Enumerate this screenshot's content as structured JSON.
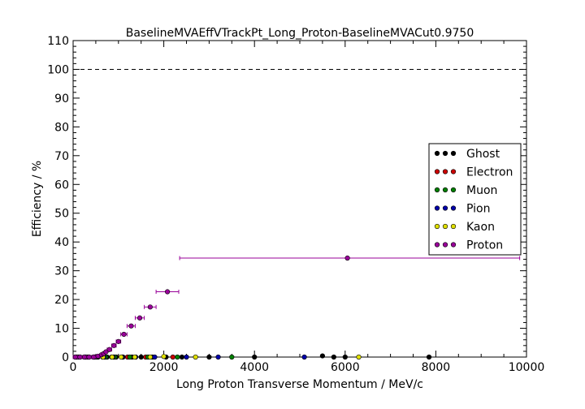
{
  "chart_data": {
    "type": "scatter",
    "title": "BaselineMVAEffVTrackPt_Long_Proton-BaselineMVACut0.9750",
    "xlabel": "Long Proton Transverse Momentum / MeV/c",
    "ylabel": "Efficiency / %",
    "xlim": [
      0,
      10000
    ],
    "ylim": [
      0,
      110
    ],
    "xticks": [
      "0",
      "2000",
      "4000",
      "6000",
      "8000",
      "10000"
    ],
    "yticks": [
      "0",
      "10",
      "20",
      "30",
      "40",
      "50",
      "60",
      "70",
      "80",
      "90",
      "100",
      "110"
    ],
    "reference_line": {
      "y": 100,
      "style": "dashed"
    },
    "grid": false,
    "legend": {
      "placement": "right"
    },
    "series": [
      {
        "name": "Ghost",
        "color": "#000000",
        "points": [
          [
            50,
            0
          ],
          [
            150,
            0
          ],
          [
            250,
            0
          ],
          [
            350,
            0
          ],
          [
            450,
            0
          ],
          [
            550,
            0
          ],
          [
            650,
            0
          ],
          [
            750,
            0
          ],
          [
            850,
            0
          ],
          [
            950,
            0
          ],
          [
            1100,
            0
          ],
          [
            1300,
            0
          ],
          [
            1500,
            0
          ],
          [
            1750,
            0
          ],
          [
            2050,
            0
          ],
          [
            2400,
            0
          ],
          [
            3000,
            0
          ],
          [
            4000,
            0
          ],
          [
            5500,
            0.4
          ],
          [
            5750,
            0
          ],
          [
            6000,
            0
          ],
          [
            7850,
            0
          ]
        ]
      },
      {
        "name": "Electron",
        "color": "#cc0000",
        "points": [
          [
            100,
            0
          ],
          [
            300,
            0
          ],
          [
            500,
            0
          ],
          [
            700,
            0
          ],
          [
            900,
            0
          ],
          [
            1200,
            0
          ],
          [
            1600,
            0
          ],
          [
            2200,
            0
          ]
        ]
      },
      {
        "name": "Muon",
        "color": "#008000",
        "points": [
          [
            120,
            0
          ],
          [
            320,
            0
          ],
          [
            520,
            0
          ],
          [
            720,
            0
          ],
          [
            920,
            0
          ],
          [
            1250,
            0
          ],
          [
            1650,
            0
          ],
          [
            2300,
            0
          ],
          [
            3500,
            0
          ]
        ]
      },
      {
        "name": "Pion",
        "color": "#0000aa",
        "points": [
          [
            80,
            0
          ],
          [
            280,
            0
          ],
          [
            480,
            0
          ],
          [
            680,
            0
          ],
          [
            880,
            0
          ],
          [
            1080,
            0
          ],
          [
            1380,
            0
          ],
          [
            1800,
            0
          ],
          [
            2500,
            0
          ],
          [
            3200,
            0
          ],
          [
            5100,
            0
          ]
        ]
      },
      {
        "name": "Kaon",
        "color": "#e0e000",
        "points": [
          [
            60,
            0
          ],
          [
            260,
            0
          ],
          [
            460,
            0
          ],
          [
            660,
            0
          ],
          [
            860,
            0
          ],
          [
            1060,
            0
          ],
          [
            1360,
            0
          ],
          [
            1700,
            0
          ],
          [
            2000,
            0.2
          ],
          [
            2700,
            0
          ],
          [
            6300,
            0
          ]
        ]
      },
      {
        "name": "Proton",
        "color": "#990099",
        "points": [
          {
            "x": 50,
            "y": 0,
            "xerr": 50
          },
          {
            "x": 150,
            "y": 0,
            "xerr": 50
          },
          {
            "x": 250,
            "y": 0,
            "xerr": 50
          },
          {
            "x": 350,
            "y": 0,
            "xerr": 50
          },
          {
            "x": 450,
            "y": 0,
            "xerr": 50
          },
          {
            "x": 550,
            "y": 0.3,
            "xerr": 50
          },
          {
            "x": 625,
            "y": 0.8,
            "xerr": 25
          },
          {
            "x": 675,
            "y": 1.2,
            "xerr": 25
          },
          {
            "x": 725,
            "y": 1.8,
            "xerr": 25
          },
          {
            "x": 800,
            "y": 2.6,
            "xerr": 50
          },
          {
            "x": 900,
            "y": 4.0,
            "xerr": 50
          },
          {
            "x": 1000,
            "y": 5.4,
            "xerr": 50
          },
          {
            "x": 1120,
            "y": 7.9,
            "xerr": 70
          },
          {
            "x": 1280,
            "y": 10.8,
            "xerr": 90
          },
          {
            "x": 1470,
            "y": 13.6,
            "xerr": 100
          },
          {
            "x": 1700,
            "y": 17.4,
            "xerr": 130
          },
          {
            "x": 2080,
            "y": 22.7,
            "xerr": 250
          },
          {
            "x": 6050,
            "y": 34.4,
            "xerr_low": 3700,
            "xerr_high": 3800
          }
        ]
      }
    ]
  }
}
